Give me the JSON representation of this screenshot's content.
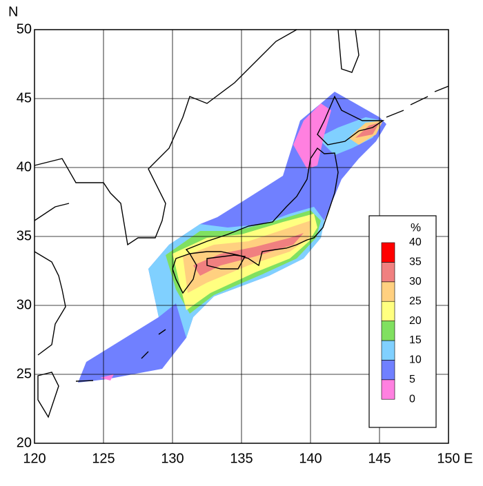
{
  "map": {
    "ylabel": "N",
    "xlabel": "E",
    "xlim": [
      120,
      150
    ],
    "ylim": [
      20,
      50
    ],
    "xticks": [
      120,
      125,
      130,
      135,
      140,
      145,
      150
    ],
    "yticks": [
      20,
      25,
      30,
      35,
      40,
      45,
      50
    ],
    "grid": true,
    "legend": {
      "title": "%",
      "levels": [
        0,
        5,
        10,
        15,
        20,
        25,
        30,
        35,
        40
      ],
      "colors": [
        "#ff80e0",
        "#7080ff",
        "#80d0ff",
        "#80e060",
        "#ffff80",
        "#ffd080",
        "#f08080",
        "#ff0000"
      ]
    }
  }
}
